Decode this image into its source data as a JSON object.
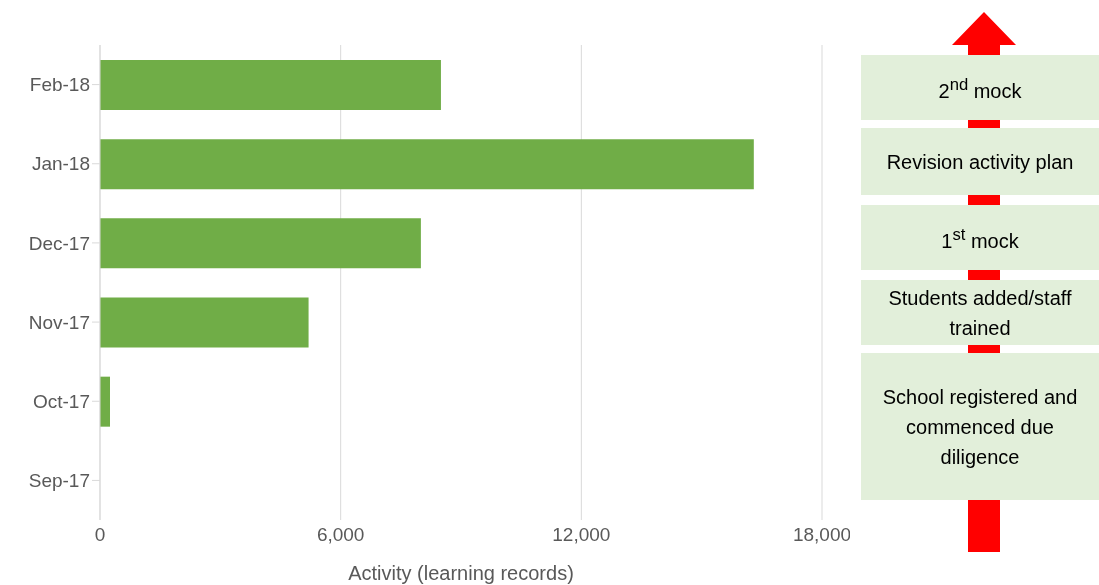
{
  "chart_data": {
    "type": "bar",
    "orientation": "horizontal",
    "categories": [
      "Feb-18",
      "Jan-18",
      "Dec-17",
      "Nov-17",
      "Oct-17",
      "Sep-17"
    ],
    "values": [
      8500,
      16300,
      8000,
      5200,
      250,
      0
    ],
    "color": "#70ad47",
    "xlim": [
      0,
      18000
    ],
    "xticks": [
      0,
      {
        "value": 6000,
        "label": "6,000"
      },
      {
        "value": 12000,
        "label": "12,000"
      },
      {
        "value": 18000,
        "label": "18,000"
      }
    ],
    "xlabel": "Activity (learning records)",
    "grid": "x",
    "annotations": [
      "2$^{nd}$ mock",
      "Revision activity plan",
      "1$^{st}$ mock",
      "Students added/staff trained",
      "School registered and commenced due diligence"
    ]
  }
}
